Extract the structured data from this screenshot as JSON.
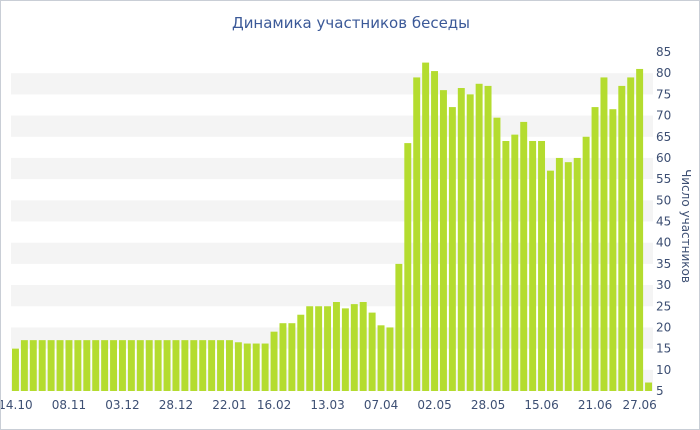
{
  "chart_data": {
    "type": "bar",
    "title": "Динамика участников беседы",
    "xlabel": "",
    "ylabel": "Число участников",
    "ylim": [
      5,
      85
    ],
    "y_ticks": [
      5,
      10,
      15,
      20,
      25,
      30,
      35,
      40,
      45,
      50,
      55,
      60,
      65,
      70,
      75,
      80,
      85
    ],
    "y_axis_side": "right",
    "grid": "alternating horizontal bands",
    "x_tick_labels": [
      "14.10",
      "08.11",
      "03.12",
      "28.12",
      "22.01",
      "16.02",
      "13.03",
      "07.04",
      "02.05",
      "28.05",
      "15.06",
      "21.06",
      "27.06"
    ],
    "x_tick_positions": [
      0,
      6,
      12,
      18,
      24,
      29,
      35,
      41,
      47,
      53,
      59,
      65,
      70
    ],
    "values": [
      15,
      17,
      17,
      17,
      17,
      17,
      17,
      17,
      17,
      17,
      17,
      17,
      17,
      17,
      17,
      17,
      17,
      17,
      17,
      17,
      17,
      17,
      17,
      17,
      17,
      16.5,
      16.2,
      16.2,
      16.2,
      19,
      21,
      21,
      23,
      25,
      25,
      25,
      26,
      24.5,
      25.5,
      26,
      23.5,
      20.5,
      20,
      35,
      63.5,
      79,
      82.5,
      80.5,
      76,
      72,
      76.5,
      75,
      77.5,
      77,
      69.5,
      64,
      65.5,
      68.5,
      64,
      64,
      57,
      60,
      59,
      60,
      65,
      72,
      79,
      71.5,
      77,
      79,
      81,
      7
    ],
    "colors": {
      "bar": "#b4dc2f",
      "band": "#f4f4f4",
      "text": "#3d4f73",
      "title": "#3b5998"
    }
  }
}
